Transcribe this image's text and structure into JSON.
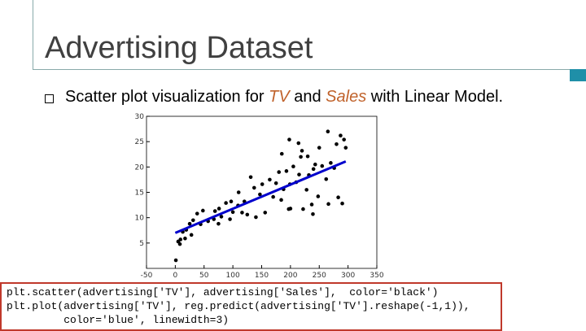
{
  "slide": {
    "title": "Advertising Dataset",
    "bullet": [
      "Scatter plot visualization for ",
      "TV",
      " and ",
      "Sales",
      " with Linear Model."
    ],
    "code": [
      "plt.scatter(advertising['TV'], advertising['Sales'],  color='black')",
      "plt.plot(advertising['TV'], reg.predict(advertising['TV'].reshape(-1,1)),",
      "         color='blue', linewidth=3)"
    ]
  },
  "chart_data": {
    "type": "scatter",
    "xlim": [
      -50,
      350
    ],
    "xticks": [
      -50,
      0,
      50,
      100,
      150,
      200,
      250,
      300,
      350
    ],
    "ylim": [
      0,
      30
    ],
    "yticks": [
      5,
      10,
      15,
      20,
      25,
      30
    ],
    "series": [
      {
        "type": "scatter",
        "color": "#000000",
        "x": [
          1,
          5,
          8,
          9,
          13,
          17,
          19,
          25,
          28,
          31,
          38,
          44,
          48,
          57,
          67,
          69,
          75,
          76,
          80,
          88,
          95,
          97,
          100,
          109,
          110,
          116,
          120,
          125,
          131,
          137,
          140,
          147,
          151,
          156,
          164,
          170,
          175,
          180,
          184,
          188,
          193,
          197,
          199,
          205,
          210,
          215,
          218,
          222,
          228,
          230,
          232,
          237,
          240,
          243,
          248,
          250,
          255,
          262,
          265,
          266,
          270,
          276,
          280,
          283,
          287,
          290,
          293,
          296,
          239,
          214,
          198,
          200,
          220,
          185
        ],
        "values": [
          1.6,
          5.3,
          4.8,
          5.7,
          7.2,
          5.9,
          7.6,
          8.8,
          6.6,
          9.5,
          10.8,
          8.7,
          11.4,
          9.3,
          9.7,
          11.3,
          8.8,
          11.8,
          10.2,
          12.9,
          9.7,
          13.2,
          11.1,
          12.4,
          15.0,
          11.0,
          13.2,
          10.6,
          18.0,
          15.9,
          10.1,
          14.6,
          16.6,
          11.0,
          17.5,
          14.1,
          16.8,
          19.0,
          13.5,
          15.6,
          19.2,
          11.7,
          16.6,
          20.1,
          17.0,
          18.5,
          22.0,
          11.7,
          15.5,
          22.1,
          18.4,
          12.6,
          19.6,
          20.5,
          14.2,
          23.8,
          20.2,
          17.6,
          27.0,
          12.7,
          20.8,
          19.8,
          24.5,
          14.0,
          26.2,
          12.8,
          25.4,
          23.8,
          10.7,
          24.7,
          25.4,
          11.8,
          23.2,
          22.6
        ]
      },
      {
        "type": "line",
        "color": "#0000cc",
        "x": [
          0,
          296
        ],
        "values": [
          7.0,
          21.1
        ]
      }
    ]
  }
}
